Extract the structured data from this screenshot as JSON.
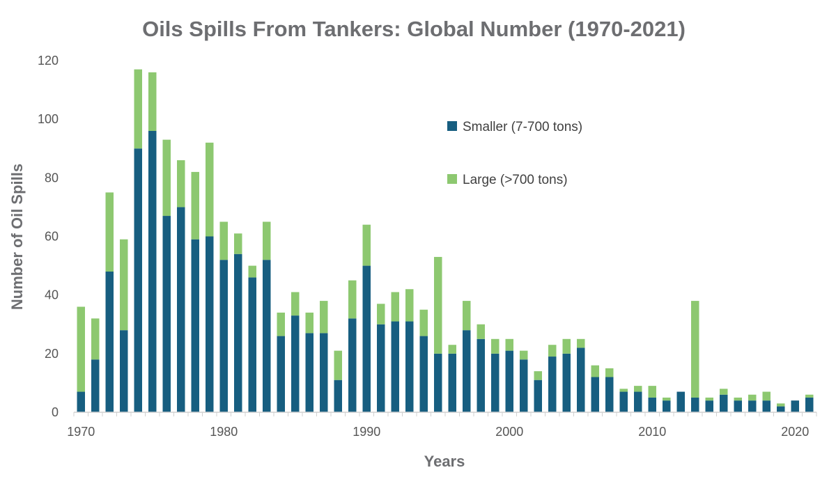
{
  "colors": {
    "smaller": "#175e80",
    "large": "#8dc870",
    "axis": "#d0d0d0",
    "text": "#6d6e71"
  },
  "chart_data": {
    "type": "bar",
    "stacked": true,
    "title": "Oils Spills From Tankers: Global Number (1970-2021)",
    "xlabel": "Years",
    "ylabel": "Number of Oil Spills",
    "ylim": [
      0,
      120
    ],
    "yticks": [
      0,
      20,
      40,
      60,
      80,
      100,
      120
    ],
    "xtick_labels": [
      "1970",
      "1980",
      "1990",
      "2000",
      "2010",
      "2020"
    ],
    "legend_position": "upper-center-right",
    "categories": [
      1970,
      1971,
      1972,
      1973,
      1974,
      1975,
      1976,
      1977,
      1978,
      1979,
      1980,
      1981,
      1982,
      1983,
      1984,
      1985,
      1986,
      1987,
      1988,
      1989,
      1990,
      1991,
      1992,
      1993,
      1994,
      1995,
      1996,
      1997,
      1998,
      1999,
      2000,
      2001,
      2002,
      2003,
      2004,
      2005,
      2006,
      2007,
      2008,
      2009,
      2010,
      2011,
      2012,
      2013,
      2014,
      2015,
      2016,
      2017,
      2018,
      2019,
      2020,
      2021
    ],
    "series": [
      {
        "name": "Smaller (7-700 tons)",
        "values": [
          7,
          18,
          48,
          28,
          90,
          96,
          67,
          70,
          59,
          60,
          52,
          54,
          46,
          52,
          26,
          33,
          27,
          27,
          11,
          32,
          50,
          30,
          31,
          31,
          26,
          20,
          20,
          28,
          25,
          20,
          21,
          18,
          11,
          19,
          20,
          22,
          12,
          12,
          7,
          7,
          5,
          4,
          7,
          5,
          4,
          6,
          4,
          4,
          4,
          2,
          4,
          5
        ]
      },
      {
        "name": "Large (>700 tons)",
        "values": [
          29,
          14,
          27,
          31,
          27,
          20,
          26,
          16,
          23,
          32,
          13,
          7,
          4,
          13,
          8,
          8,
          7,
          11,
          10,
          13,
          14,
          7,
          10,
          11,
          9,
          33,
          3,
          10,
          5,
          5,
          4,
          3,
          3,
          4,
          5,
          3,
          4,
          3,
          1,
          2,
          4,
          1,
          0,
          33,
          1,
          2,
          1,
          2,
          3,
          1,
          0,
          1
        ]
      }
    ]
  }
}
